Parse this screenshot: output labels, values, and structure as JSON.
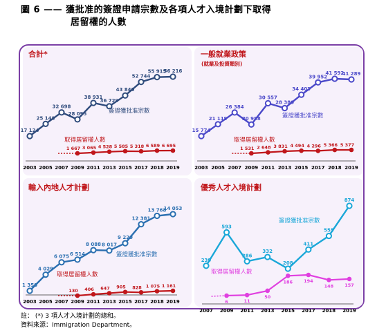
{
  "figure": {
    "title_line1": "圖 6 —— 獲批准的簽證申請宗數及各項人才入境計劃下取得",
    "title_line2": "居留權的人數"
  },
  "colors": {
    "panel_accent": "#7b3fa6",
    "panel_bg": "#f7f1fb",
    "approved_total": "#2f4b7c",
    "residence": "#c0161b",
    "general_policy": "#4b49c9",
    "admission_mainland": "#2a6fb0",
    "quality_migrant": "#1aa7d8",
    "quality_residence": "#e040e0"
  },
  "footnotes": {
    "note": "註： (*)  3 項人才入境計劃的總和。",
    "source": "資料來源：Immigration Department。"
  },
  "chart_data": [
    {
      "type": "line",
      "title": "合計*",
      "subtitle": "",
      "categories": [
        "2003",
        "2005",
        "2007",
        "2009",
        "2011",
        "2013",
        "2015",
        "2017",
        "2018",
        "2019"
      ],
      "series": [
        {
          "name": "簽證獲批准宗數",
          "values": [
            17124,
            25148,
            32698,
            28095,
            38931,
            36729,
            43840,
            52744,
            55915,
            56216
          ],
          "labels": [
            "17 124",
            "25 148",
            "32 698",
            "28 095",
            "38 931",
            "36 729",
            "43 840",
            "52 744",
            "55 915",
            "56 216"
          ]
        },
        {
          "name": "取得居留權人數",
          "values": [
            null,
            null,
            null,
            1667,
            3065,
            4528,
            5585,
            5318,
            6589,
            6695
          ],
          "labels": [
            "",
            "",
            "",
            "1 667",
            "3 065",
            "4 528",
            "5 585",
            "5 318",
            "6 589",
            "6 695"
          ]
        }
      ],
      "ylim": [
        0,
        62000
      ]
    },
    {
      "type": "line",
      "title": "一般就業政策",
      "subtitle": "(就業及投資類別)",
      "categories": [
        "2003",
        "2005",
        "2007",
        "2009",
        "2011",
        "2013",
        "2015",
        "2017",
        "2018",
        "2019"
      ],
      "series": [
        {
          "name": "簽證獲批准宗數",
          "values": [
            15774,
            21119,
            26384,
            20988,
            30557,
            28380,
            34403,
            39952,
            41592,
            41289
          ],
          "labels": [
            "15 774",
            "21 119",
            "26 384",
            "20 988",
            "30 557",
            "28 380",
            "34 403",
            "39 952",
            "41 592",
            "41 289"
          ]
        },
        {
          "name": "取得居留權人數",
          "values": [
            null,
            null,
            null,
            1531,
            2648,
            3831,
            4494,
            4296,
            5366,
            5377
          ],
          "labels": [
            "",
            "",
            "",
            "1 531",
            "2 648",
            "3 831",
            "4 494",
            "4 296",
            "5 366",
            "5 377"
          ]
        }
      ],
      "ylim": [
        0,
        46000
      ]
    },
    {
      "type": "line",
      "title": "輸入內地人才計劃",
      "subtitle": "",
      "categories": [
        "2003",
        "2005",
        "2007",
        "2009",
        "2011",
        "2013",
        "2015",
        "2017",
        "2018",
        "2019"
      ],
      "series": [
        {
          "name": "簽證獲批准宗數",
          "values": [
            1350,
            4029,
            6075,
            6514,
            8088,
            8017,
            9229,
            12381,
            13768,
            14053
          ],
          "labels": [
            "1 350",
            "4 029",
            "6 075",
            "6 514",
            "8 088",
            "8 017",
            "9 229",
            "12 381",
            "13 768",
            "14 053"
          ]
        },
        {
          "name": "取得居留權人數",
          "values": [
            null,
            null,
            null,
            130,
            406,
            647,
            905,
            828,
            1075,
            1161
          ],
          "labels": [
            "",
            "",
            "",
            "130",
            "406",
            "647",
            "905",
            "828",
            "1 075",
            "1 161"
          ]
        }
      ],
      "ylim": [
        0,
        15500
      ]
    },
    {
      "type": "line",
      "title": "優秀人才入境計劃",
      "subtitle": "",
      "categories": [
        "2007",
        "2009",
        "2011",
        "2013",
        "2015",
        "2017",
        "2018",
        "2019"
      ],
      "series": [
        {
          "name": "簽證獲批准宗數",
          "values": [
            239,
            593,
            286,
            332,
            208,
            411,
            555,
            874
          ],
          "labels": [
            "239",
            "593",
            "286",
            "332",
            "208",
            "411",
            "555",
            "874"
          ]
        },
        {
          "name": "取得居留權人數",
          "values": [
            null,
            6,
            11,
            50,
            186,
            194,
            148,
            157
          ],
          "labels": [
            "",
            "6",
            "11",
            "50",
            "186",
            "194",
            "148",
            "157"
          ]
        }
      ],
      "ylim": [
        0,
        900
      ]
    }
  ]
}
